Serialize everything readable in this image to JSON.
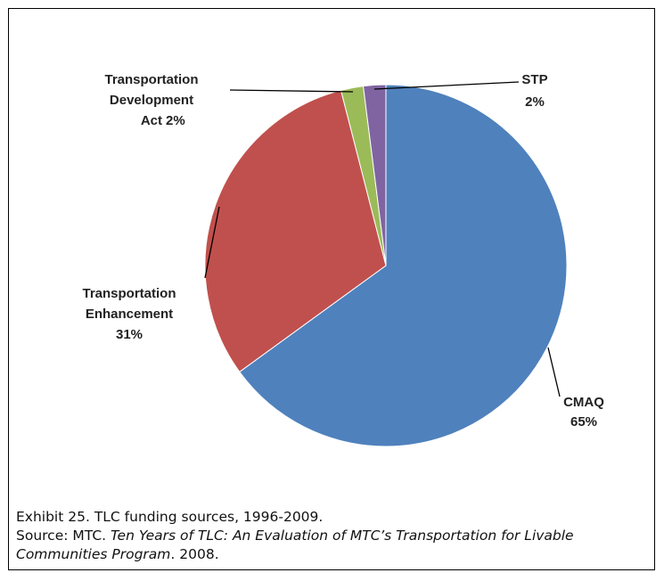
{
  "chart_data": {
    "type": "pie",
    "categories": [
      "CMAQ",
      "Transportation Enhancement",
      "Transportation Development Act",
      "STP"
    ],
    "values": [
      65,
      31,
      2,
      2
    ],
    "value_labels": [
      "65%",
      "31%",
      "2%",
      "2%"
    ],
    "colors": [
      "#4f81bd",
      "#c0504d",
      "#9bbb59",
      "#8064a2"
    ]
  },
  "caption": {
    "line1": "Exhibit 25. TLC funding sources, 1996-2009.",
    "source_prefix": "Source: MTC. ",
    "source_title": "Ten Years of TLC: An Evaluation of MTC’s Transportation for Livable Communities Program",
    "source_suffix": ". 2008."
  }
}
